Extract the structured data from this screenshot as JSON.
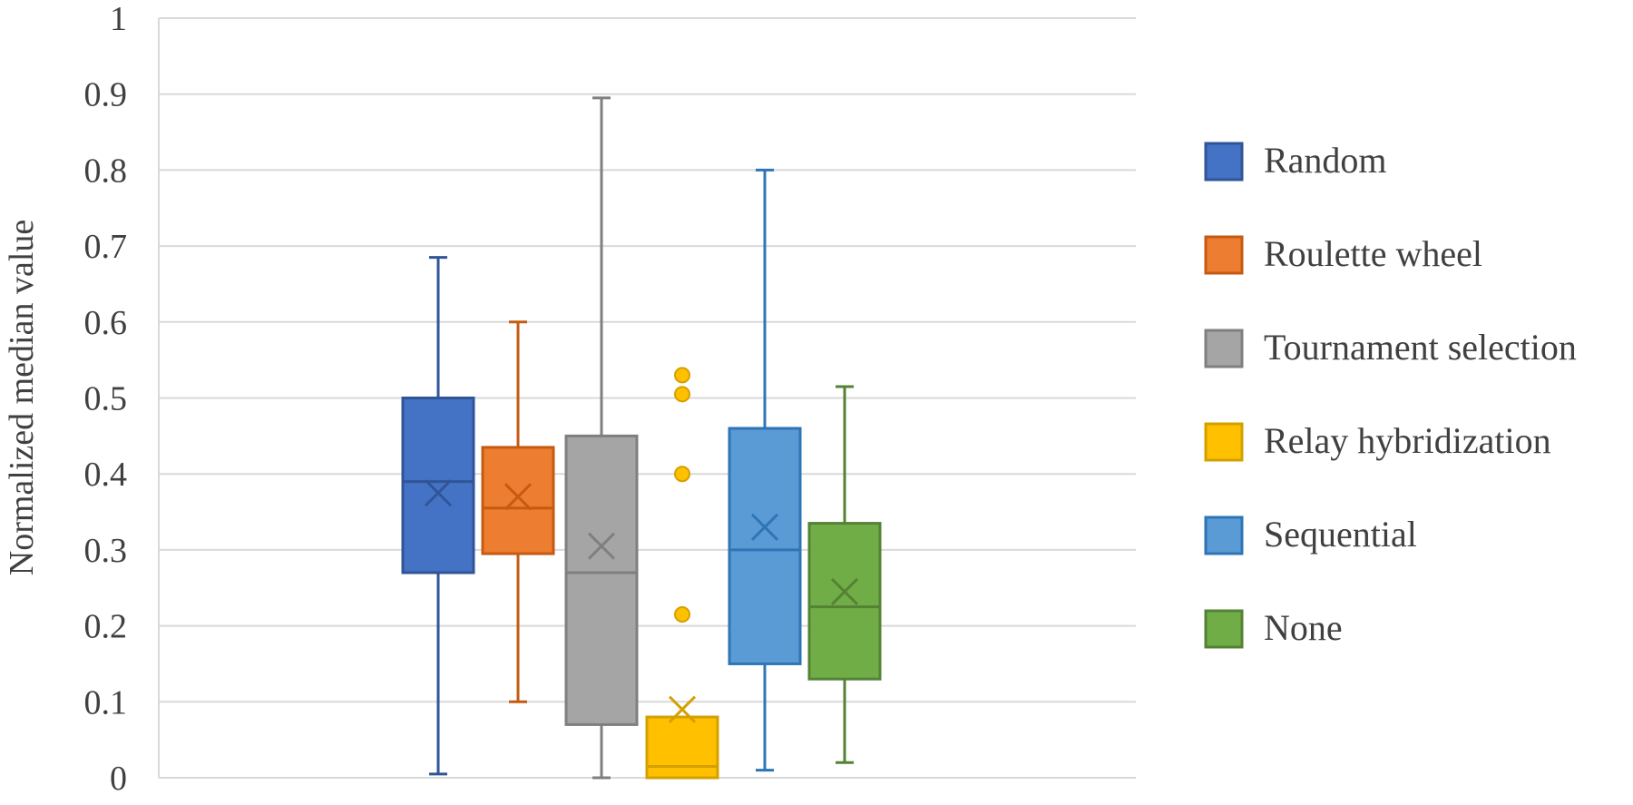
{
  "chart_data": {
    "type": "box",
    "title": "",
    "xlabel": "",
    "ylabel": "Normalized median value",
    "ylim": [
      0,
      1
    ],
    "yticks": [
      0,
      0.1,
      0.2,
      0.3,
      0.4,
      0.5,
      0.6,
      0.7,
      0.8,
      0.9,
      1
    ],
    "ytick_labels": [
      "0",
      "0.1",
      "0.2",
      "0.3",
      "0.4",
      "0.5",
      "0.6",
      "0.7",
      "0.8",
      "0.9",
      "1"
    ],
    "grid": "horizontal",
    "legend_position": "right",
    "series": [
      {
        "name": "Random",
        "color": "#4472c4",
        "border": "#2f5597",
        "min": 0.005,
        "q1": 0.27,
        "median": 0.39,
        "q3": 0.5,
        "max": 0.685,
        "mean": 0.375,
        "outliers": []
      },
      {
        "name": "Roulette wheel",
        "color": "#ed7d31",
        "border": "#c55a11",
        "min": 0.1,
        "q1": 0.295,
        "median": 0.355,
        "q3": 0.435,
        "max": 0.6,
        "mean": 0.37,
        "outliers": []
      },
      {
        "name": "Tournament selection",
        "color": "#a5a5a5",
        "border": "#7f7f7f",
        "min": 0.0,
        "q1": 0.07,
        "median": 0.27,
        "q3": 0.45,
        "max": 0.895,
        "mean": 0.305,
        "outliers": []
      },
      {
        "name": "Relay hybridization",
        "color": "#ffc000",
        "border": "#d4a000",
        "min": 0.0,
        "q1": 0.0,
        "median": 0.015,
        "q3": 0.08,
        "max": 0.08,
        "mean": 0.09,
        "outliers": [
          0.53,
          0.505,
          0.4,
          0.215
        ]
      },
      {
        "name": "Sequential",
        "color": "#5b9bd5",
        "border": "#2e75b6",
        "min": 0.01,
        "q1": 0.15,
        "median": 0.3,
        "q3": 0.46,
        "max": 0.8,
        "mean": 0.33,
        "outliers": []
      },
      {
        "name": "None",
        "color": "#70ad47",
        "border": "#548235",
        "min": 0.02,
        "q1": 0.13,
        "median": 0.225,
        "q3": 0.335,
        "max": 0.515,
        "mean": 0.245,
        "outliers": []
      }
    ]
  }
}
